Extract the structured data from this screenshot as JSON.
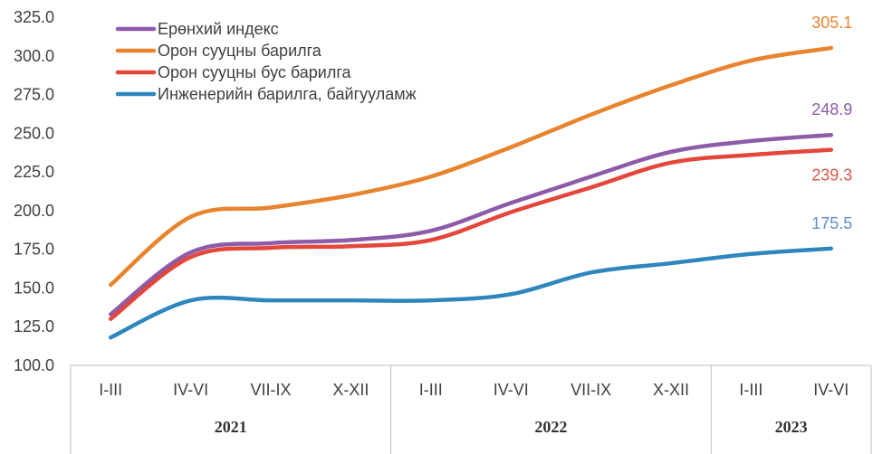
{
  "chart_data": {
    "type": "line",
    "title": "",
    "xlabel": "",
    "ylabel": "",
    "ylim": [
      100,
      325
    ],
    "yticks": [
      "100.0",
      "125.0",
      "150.0",
      "175.0",
      "200.0",
      "225.0",
      "250.0",
      "275.0",
      "300.0",
      "325.0"
    ],
    "ytick_values": [
      100,
      125,
      150,
      175,
      200,
      225,
      250,
      275,
      300,
      325
    ],
    "categories": [
      "I-III",
      "IV-VI",
      "VII-IX",
      "X-XII",
      "I-III",
      "IV-VI",
      "VII-IX",
      "X-XII",
      "I-III",
      "IV-VI"
    ],
    "groups": [
      {
        "label": "2021",
        "count": 4
      },
      {
        "label": "2022",
        "count": 4
      },
      {
        "label": "2023",
        "count": 2
      }
    ],
    "legend_position": "top-left",
    "series": [
      {
        "name": "Ерөнхий индекс",
        "color": "#8e5ba8",
        "values": [
          133,
          173,
          179,
          181,
          187,
          205,
          222,
          238,
          245,
          248.9
        ],
        "end_label": "248.9"
      },
      {
        "name": "Орон сууцны барилга",
        "color": "#e8832e",
        "values": [
          152,
          196,
          202,
          210,
          222,
          241,
          262,
          281,
          297,
          305.1
        ],
        "end_label": "305.1"
      },
      {
        "name": "Орон сууцны бус барилга",
        "color": "#e5463a",
        "values": [
          130,
          170,
          176,
          177,
          181,
          199,
          215,
          231,
          236,
          239.3
        ],
        "end_label": "239.3"
      },
      {
        "name": "Инженерийн барилга, байгууламж",
        "color": "#2e86bf",
        "values": [
          118,
          142,
          142,
          142,
          142,
          146,
          160,
          166,
          172,
          175.5
        ],
        "end_label": "175.5"
      }
    ],
    "end_label_colors": [
      "#8e5ba8",
      "#e8832e",
      "#d9574a",
      "#5b8fc9"
    ]
  }
}
